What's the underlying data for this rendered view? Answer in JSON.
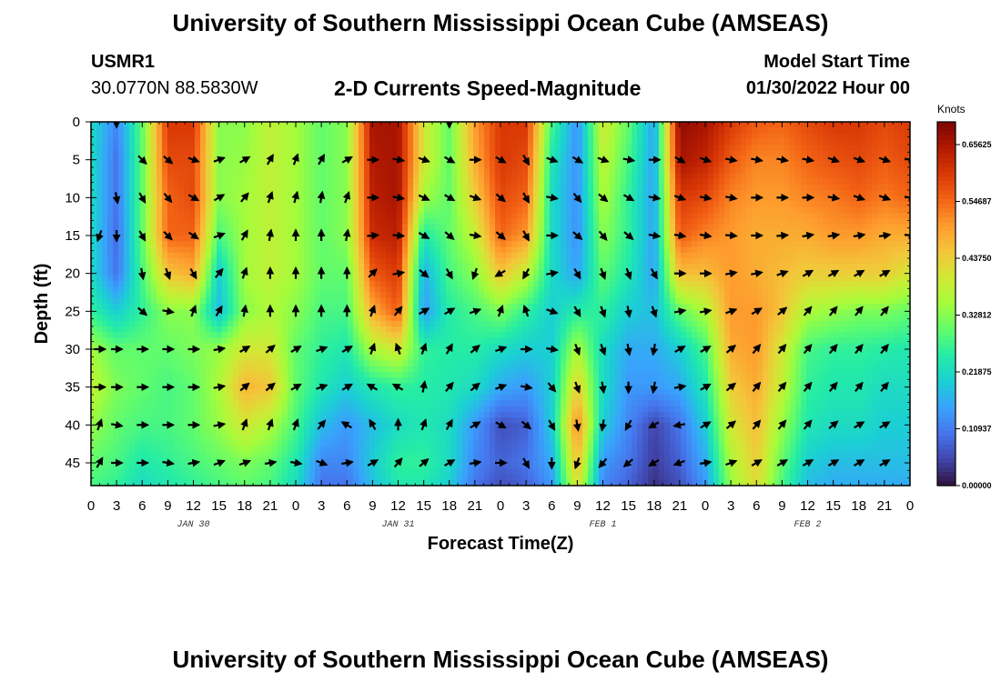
{
  "header": {
    "title": "University of Southern Mississippi Ocean Cube (AMSEAS)",
    "station": "USMR1",
    "coords": "30.0770N  88.5830W",
    "subtitle": "2-D Currents Speed-Magnitude",
    "model_start_label": "Model Start Time",
    "model_start_value": "01/30/2022 Hour 00"
  },
  "footer": {
    "title": "University of Southern Mississippi Ocean Cube (AMSEAS)"
  },
  "chart_data": {
    "type": "heatmap",
    "title": "2-D Currents Speed-Magnitude",
    "xlabel": "Forecast Time(Z)",
    "ylabel": "Depth (ft)",
    "x_ticks": [
      "0",
      "3",
      "6",
      "9",
      "12",
      "15",
      "18",
      "21",
      "0",
      "3",
      "6",
      "9",
      "12",
      "15",
      "18",
      "21",
      "0",
      "3",
      "6",
      "9",
      "12",
      "15",
      "18",
      "21",
      "0",
      "3",
      "6",
      "9",
      "12",
      "15",
      "18",
      "21",
      "0"
    ],
    "x_range_hours": [
      0,
      96
    ],
    "date_labels": [
      {
        "hour": 12,
        "label": "JAN 30"
      },
      {
        "hour": 36,
        "label": "JAN 31"
      },
      {
        "hour": 60,
        "label": "FEB 1"
      },
      {
        "hour": 84,
        "label": "FEB 2"
      }
    ],
    "y_ticks": [
      0,
      5,
      10,
      15,
      20,
      25,
      30,
      35,
      40,
      45
    ],
    "ylim": [
      0,
      48
    ],
    "colorbar": {
      "units": "Knots",
      "ticks": [
        "0.65625",
        "0.54687",
        "0.43750",
        "0.32812",
        "0.21875",
        "0.10937",
        "0.00000"
      ],
      "range": [
        0,
        0.7
      ],
      "colors": [
        "#30123b",
        "#4145ab",
        "#4675ed",
        "#39a2fc",
        "#1bcfd4",
        "#24eca6",
        "#61fc6c",
        "#a4fc3b",
        "#d1e834",
        "#f3c63a",
        "#fe9b2d",
        "#f36315",
        "#d93806",
        "#b11901",
        "#7a0403"
      ]
    },
    "speed_field_knots": {
      "hours": [
        0,
        3,
        6,
        9,
        12,
        15,
        18,
        21,
        24,
        27,
        30,
        33,
        36,
        39,
        42,
        45,
        48,
        51,
        54,
        57,
        60,
        63,
        66,
        69,
        72,
        75,
        78,
        81,
        84,
        87,
        90,
        93,
        96
      ],
      "depths_ft": [
        0,
        5,
        10,
        15,
        20,
        25,
        30,
        35,
        40,
        45,
        48
      ],
      "rows": [
        [
          0.22,
          0.12,
          0.3,
          0.6,
          0.6,
          0.33,
          0.33,
          0.38,
          0.35,
          0.3,
          0.33,
          0.66,
          0.66,
          0.4,
          0.3,
          0.5,
          0.6,
          0.6,
          0.28,
          0.13,
          0.4,
          0.3,
          0.15,
          0.68,
          0.66,
          0.6,
          0.56,
          0.55,
          0.58,
          0.6,
          0.6,
          0.58,
          0.6
        ],
        [
          0.22,
          0.1,
          0.3,
          0.58,
          0.58,
          0.33,
          0.34,
          0.38,
          0.35,
          0.3,
          0.33,
          0.65,
          0.66,
          0.4,
          0.3,
          0.48,
          0.6,
          0.58,
          0.24,
          0.13,
          0.38,
          0.28,
          0.15,
          0.66,
          0.63,
          0.56,
          0.52,
          0.52,
          0.55,
          0.57,
          0.58,
          0.56,
          0.58
        ],
        [
          0.22,
          0.1,
          0.3,
          0.55,
          0.58,
          0.33,
          0.35,
          0.38,
          0.35,
          0.3,
          0.33,
          0.64,
          0.66,
          0.35,
          0.3,
          0.44,
          0.58,
          0.55,
          0.22,
          0.13,
          0.36,
          0.26,
          0.15,
          0.6,
          0.58,
          0.52,
          0.5,
          0.5,
          0.52,
          0.53,
          0.55,
          0.53,
          0.55
        ],
        [
          0.22,
          0.09,
          0.3,
          0.55,
          0.55,
          0.28,
          0.35,
          0.38,
          0.35,
          0.3,
          0.33,
          0.62,
          0.64,
          0.24,
          0.3,
          0.38,
          0.55,
          0.5,
          0.22,
          0.13,
          0.33,
          0.26,
          0.15,
          0.56,
          0.52,
          0.5,
          0.48,
          0.48,
          0.48,
          0.5,
          0.5,
          0.48,
          0.48
        ],
        [
          0.22,
          0.1,
          0.28,
          0.45,
          0.48,
          0.2,
          0.35,
          0.38,
          0.35,
          0.3,
          0.3,
          0.56,
          0.6,
          0.16,
          0.28,
          0.33,
          0.45,
          0.38,
          0.22,
          0.15,
          0.3,
          0.24,
          0.15,
          0.46,
          0.46,
          0.5,
          0.48,
          0.46,
          0.44,
          0.44,
          0.44,
          0.44,
          0.4
        ],
        [
          0.26,
          0.2,
          0.26,
          0.33,
          0.33,
          0.18,
          0.33,
          0.36,
          0.33,
          0.28,
          0.28,
          0.48,
          0.56,
          0.14,
          0.25,
          0.28,
          0.32,
          0.26,
          0.2,
          0.25,
          0.26,
          0.2,
          0.18,
          0.3,
          0.36,
          0.5,
          0.5,
          0.45,
          0.36,
          0.34,
          0.32,
          0.32,
          0.3
        ],
        [
          0.35,
          0.3,
          0.3,
          0.3,
          0.32,
          0.34,
          0.4,
          0.4,
          0.3,
          0.26,
          0.24,
          0.36,
          0.4,
          0.26,
          0.25,
          0.25,
          0.22,
          0.2,
          0.2,
          0.36,
          0.22,
          0.16,
          0.16,
          0.2,
          0.28,
          0.48,
          0.5,
          0.4,
          0.28,
          0.26,
          0.26,
          0.25,
          0.24
        ],
        [
          0.38,
          0.32,
          0.3,
          0.28,
          0.3,
          0.36,
          0.47,
          0.45,
          0.3,
          0.24,
          0.2,
          0.24,
          0.26,
          0.25,
          0.24,
          0.22,
          0.16,
          0.14,
          0.2,
          0.44,
          0.22,
          0.14,
          0.14,
          0.16,
          0.24,
          0.44,
          0.48,
          0.38,
          0.26,
          0.24,
          0.24,
          0.22,
          0.22
        ],
        [
          0.34,
          0.3,
          0.28,
          0.28,
          0.3,
          0.34,
          0.4,
          0.36,
          0.28,
          0.18,
          0.14,
          0.18,
          0.22,
          0.24,
          0.22,
          0.14,
          0.06,
          0.08,
          0.2,
          0.52,
          0.2,
          0.12,
          0.05,
          0.1,
          0.2,
          0.4,
          0.46,
          0.34,
          0.24,
          0.22,
          0.22,
          0.2,
          0.2
        ],
        [
          0.3,
          0.28,
          0.24,
          0.26,
          0.28,
          0.3,
          0.32,
          0.3,
          0.24,
          0.12,
          0.12,
          0.2,
          0.26,
          0.26,
          0.22,
          0.12,
          0.08,
          0.1,
          0.16,
          0.46,
          0.14,
          0.1,
          0.04,
          0.08,
          0.16,
          0.36,
          0.44,
          0.3,
          0.2,
          0.18,
          0.18,
          0.18,
          0.18
        ],
        [
          0.28,
          0.26,
          0.22,
          0.24,
          0.26,
          0.28,
          0.3,
          0.28,
          0.22,
          0.1,
          0.1,
          0.18,
          0.24,
          0.24,
          0.2,
          0.1,
          0.06,
          0.08,
          0.14,
          0.42,
          0.12,
          0.08,
          0.03,
          0.06,
          0.14,
          0.34,
          0.42,
          0.28,
          0.18,
          0.16,
          0.16,
          0.16,
          0.16
        ]
      ]
    },
    "current_vectors": {
      "hours": [
        1,
        3,
        6,
        9,
        12,
        15,
        18,
        21,
        24,
        27,
        30,
        33,
        36,
        39,
        42,
        45,
        48,
        51,
        54,
        57,
        60,
        63,
        66,
        69,
        72,
        75,
        78,
        81,
        84,
        87,
        90,
        93,
        96
      ],
      "depths_ft": [
        0,
        5,
        10,
        15,
        20,
        25,
        30,
        35,
        40,
        45
      ],
      "direction_deg": [
        [
          null,
          180,
          null,
          null,
          null,
          null,
          null,
          null,
          null,
          null,
          null,
          null,
          null,
          null,
          180,
          null,
          null,
          null,
          null,
          null,
          null,
          null,
          null,
          null,
          null,
          null,
          null,
          null,
          null,
          null,
          null,
          null,
          null
        ],
        [
          null,
          null,
          135,
          130,
          110,
          70,
          60,
          30,
          20,
          30,
          60,
          90,
          100,
          110,
          120,
          90,
          120,
          150,
          110,
          120,
          110,
          100,
          90,
          120,
          110,
          100,
          100,
          100,
          100,
          110,
          110,
          110,
          100
        ],
        [
          null,
          170,
          150,
          140,
          120,
          60,
          40,
          20,
          15,
          10,
          20,
          90,
          100,
          115,
          120,
          110,
          130,
          150,
          100,
          140,
          130,
          120,
          100,
          110,
          100,
          100,
          90,
          90,
          90,
          100,
          110,
          110,
          100
        ],
        [
          200,
          180,
          150,
          135,
          125,
          70,
          30,
          10,
          0,
          0,
          10,
          85,
          95,
          120,
          130,
          100,
          130,
          150,
          90,
          130,
          140,
          130,
          100,
          100,
          100,
          95,
          90,
          85,
          80,
          80,
          80,
          80,
          100
        ],
        [
          null,
          null,
          170,
          160,
          150,
          40,
          20,
          0,
          0,
          0,
          0,
          45,
          80,
          130,
          150,
          200,
          240,
          210,
          80,
          150,
          160,
          160,
          150,
          90,
          90,
          80,
          80,
          70,
          60,
          60,
          60,
          60,
          null
        ],
        [
          null,
          null,
          130,
          100,
          20,
          30,
          10,
          0,
          0,
          0,
          0,
          20,
          40,
          60,
          60,
          70,
          20,
          340,
          110,
          150,
          160,
          170,
          160,
          80,
          80,
          70,
          60,
          50,
          40,
          40,
          40,
          40,
          null
        ],
        [
          90,
          90,
          90,
          90,
          90,
          80,
          60,
          50,
          60,
          70,
          60,
          20,
          340,
          20,
          30,
          50,
          70,
          90,
          100,
          160,
          160,
          170,
          190,
          60,
          60,
          50,
          40,
          40,
          40,
          40,
          40,
          40,
          null
        ],
        [
          90,
          90,
          90,
          90,
          90,
          80,
          50,
          50,
          60,
          70,
          60,
          300,
          300,
          10,
          40,
          50,
          70,
          100,
          140,
          160,
          170,
          180,
          190,
          80,
          60,
          50,
          40,
          40,
          40,
          40,
          40,
          40,
          null
        ],
        [
          20,
          100,
          90,
          90,
          90,
          80,
          20,
          20,
          20,
          40,
          300,
          330,
          0,
          20,
          30,
          60,
          120,
          130,
          150,
          170,
          190,
          210,
          240,
          260,
          60,
          50,
          40,
          40,
          40,
          50,
          60,
          60,
          null
        ],
        [
          30,
          90,
          90,
          100,
          80,
          70,
          70,
          80,
          100,
          110,
          80,
          60,
          40,
          50,
          60,
          80,
          90,
          150,
          180,
          200,
          220,
          230,
          240,
          250,
          80,
          70,
          60,
          60,
          60,
          60,
          60,
          60,
          null
        ]
      ]
    }
  }
}
